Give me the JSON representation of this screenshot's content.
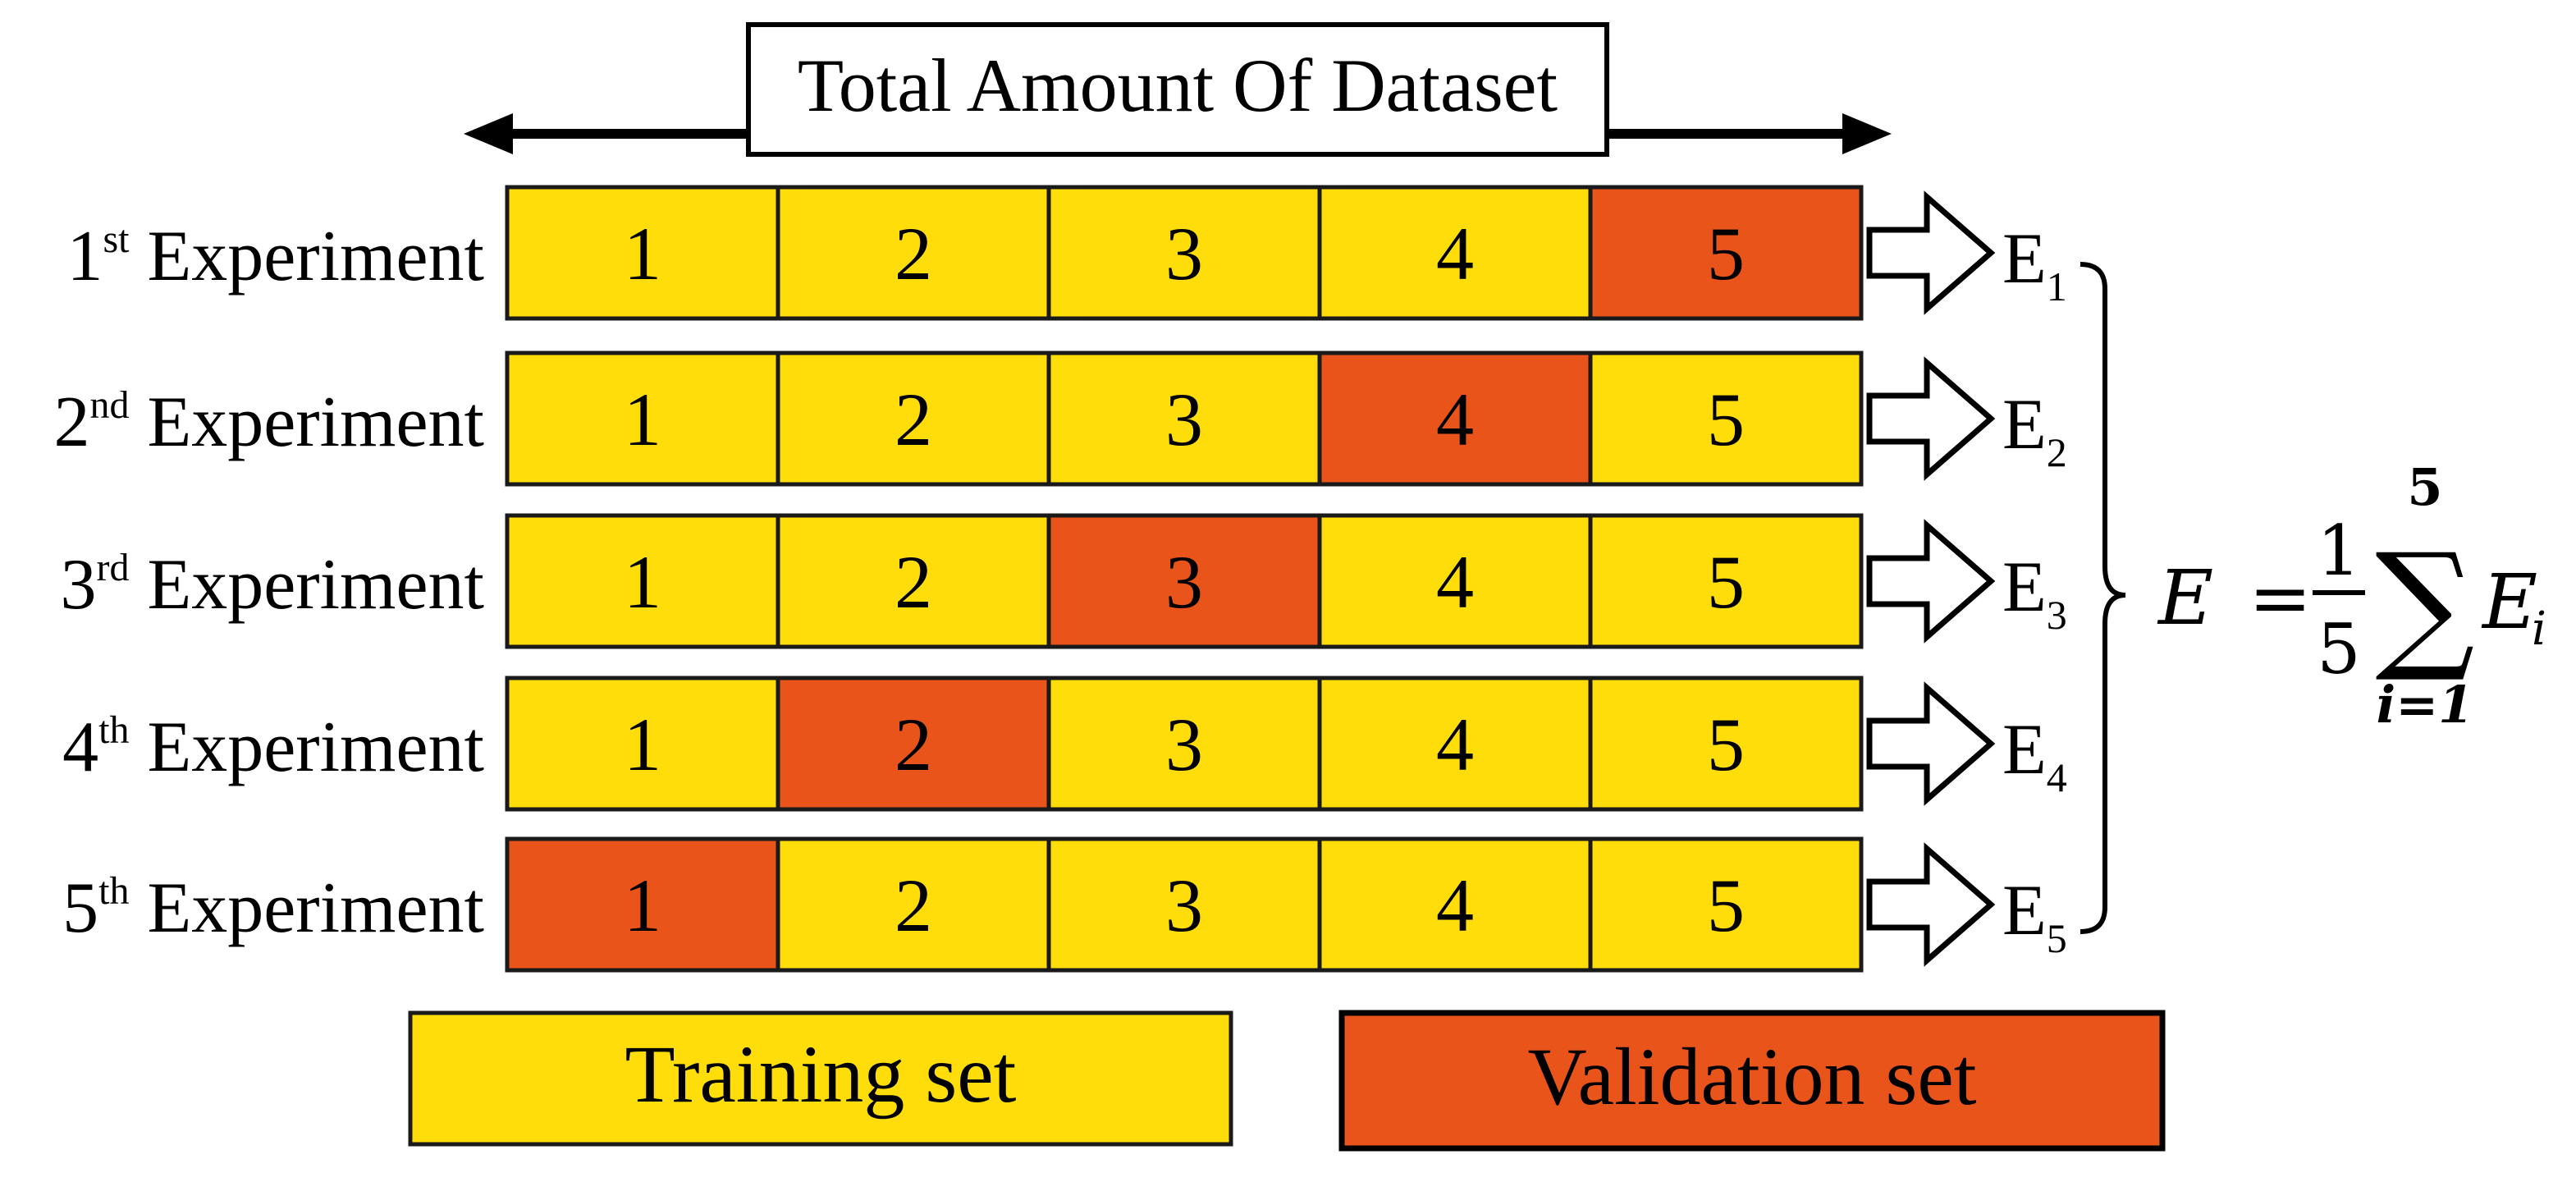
{
  "header": {
    "title": "Total Amount Of Dataset"
  },
  "rows": [
    {
      "ordinal": "1",
      "suffix": "st",
      "label": "Experiment",
      "folds": [
        "1",
        "2",
        "3",
        "4",
        "5"
      ],
      "validation_index": 4,
      "error_base": "E",
      "error_sub": "1"
    },
    {
      "ordinal": "2",
      "suffix": "nd",
      "label": "Experiment",
      "folds": [
        "1",
        "2",
        "3",
        "4",
        "5"
      ],
      "validation_index": 3,
      "error_base": "E",
      "error_sub": "2"
    },
    {
      "ordinal": "3",
      "suffix": "rd",
      "label": "Experiment",
      "folds": [
        "1",
        "2",
        "3",
        "4",
        "5"
      ],
      "validation_index": 2,
      "error_base": "E",
      "error_sub": "3"
    },
    {
      "ordinal": "4",
      "suffix": "th",
      "label": "Experiment",
      "folds": [
        "1",
        "2",
        "3",
        "4",
        "5"
      ],
      "validation_index": 1,
      "error_base": "E",
      "error_sub": "4"
    },
    {
      "ordinal": "5",
      "suffix": "th",
      "label": "Experiment",
      "folds": [
        "1",
        "2",
        "3",
        "4",
        "5"
      ],
      "validation_index": 0,
      "error_base": "E",
      "error_sub": "5"
    }
  ],
  "formula": {
    "lhs": "E",
    "equals": "=",
    "numerator": "1",
    "denominator": "5",
    "sigma": "∑",
    "upper_limit": "5",
    "lower_limit": "i=1",
    "term_base": "E",
    "term_sub": "i"
  },
  "legend": {
    "training": "Training set",
    "validation": "Validation set"
  },
  "colors": {
    "training": "#FEDD0A",
    "validation": "#E8541A",
    "border": "#1a1a1a"
  }
}
